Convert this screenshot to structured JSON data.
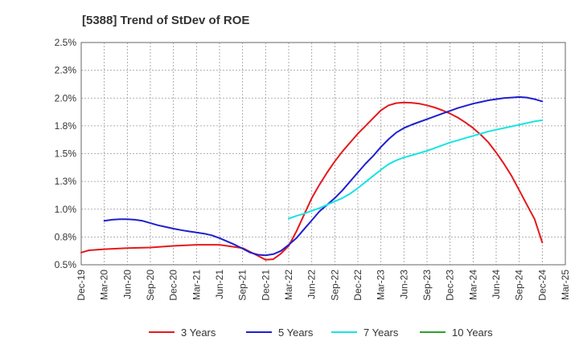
{
  "chart_data": {
    "type": "line",
    "title": "[5388]  Trend of StDev of ROE",
    "xlabel": "",
    "ylabel": "",
    "ylim": [
      0.5,
      2.5
    ],
    "y_ticks": [
      "0.5%",
      "0.8%",
      "1.0%",
      "1.3%",
      "1.5%",
      "1.8%",
      "2.0%",
      "2.3%",
      "2.5%"
    ],
    "y_tick_values": [
      0.5,
      0.75,
      1.0,
      1.25,
      1.5,
      1.75,
      2.0,
      2.25,
      2.5
    ],
    "x_ticks": [
      "Dec-19",
      "Mar-20",
      "Jun-20",
      "Sep-20",
      "Dec-20",
      "Mar-21",
      "Jun-21",
      "Sep-21",
      "Dec-21",
      "Mar-22",
      "Jun-22",
      "Sep-22",
      "Dec-22",
      "Mar-23",
      "Jun-23",
      "Sep-23",
      "Dec-23",
      "Mar-24",
      "Jun-24",
      "Sep-24",
      "Dec-24",
      "Mar-25"
    ],
    "grid": true,
    "legend_position": "bottom",
    "series": [
      {
        "name": "3 Years",
        "color": "#e31a1c",
        "points": [
          [
            "Dec-19",
            0.61
          ],
          [
            "Jan-20",
            0.63
          ],
          [
            "Mar-20",
            0.64
          ],
          [
            "Jun-20",
            0.65
          ],
          [
            "Sep-20",
            0.655
          ],
          [
            "Dec-20",
            0.67
          ],
          [
            "Mar-21",
            0.68
          ],
          [
            "Jun-21",
            0.68
          ],
          [
            "Sep-21",
            0.65
          ],
          [
            "Nov-21",
            0.58
          ],
          [
            "Dec-21",
            0.545
          ],
          [
            "Jan-22",
            0.55
          ],
          [
            "Feb-22",
            0.6
          ],
          [
            "Mar-22",
            0.67
          ],
          [
            "Apr-22",
            0.8
          ],
          [
            "May-22",
            0.95
          ],
          [
            "Jun-22",
            1.1
          ],
          [
            "Jul-22",
            1.22
          ],
          [
            "Aug-22",
            1.33
          ],
          [
            "Sep-22",
            1.43
          ],
          [
            "Oct-22",
            1.52
          ],
          [
            "Nov-22",
            1.6
          ],
          [
            "Dec-22",
            1.68
          ],
          [
            "Jan-23",
            1.75
          ],
          [
            "Feb-23",
            1.82
          ],
          [
            "Mar-23",
            1.89
          ],
          [
            "Apr-23",
            1.935
          ],
          [
            "May-23",
            1.955
          ],
          [
            "Jun-23",
            1.96
          ],
          [
            "Jul-23",
            1.958
          ],
          [
            "Aug-23",
            1.95
          ],
          [
            "Sep-23",
            1.935
          ],
          [
            "Oct-23",
            1.915
          ],
          [
            "Nov-23",
            1.89
          ],
          [
            "Dec-23",
            1.86
          ],
          [
            "Jan-24",
            1.825
          ],
          [
            "Feb-24",
            1.78
          ],
          [
            "Mar-24",
            1.73
          ],
          [
            "Apr-24",
            1.67
          ],
          [
            "May-24",
            1.6
          ],
          [
            "Jun-24",
            1.51
          ],
          [
            "Jul-24",
            1.41
          ],
          [
            "Aug-24",
            1.3
          ],
          [
            "Sep-24",
            1.17
          ],
          [
            "Oct-24",
            1.04
          ],
          [
            "Nov-24",
            0.91
          ],
          [
            "Dec-24",
            0.7
          ]
        ]
      },
      {
        "name": "5 Years",
        "color": "#1f1fcf",
        "points": [
          [
            "Mar-20",
            0.895
          ],
          [
            "Apr-20",
            0.905
          ],
          [
            "May-20",
            0.91
          ],
          [
            "Jun-20",
            0.91
          ],
          [
            "Jul-20",
            0.905
          ],
          [
            "Aug-20",
            0.895
          ],
          [
            "Sep-20",
            0.875
          ],
          [
            "Oct-20",
            0.855
          ],
          [
            "Nov-20",
            0.84
          ],
          [
            "Dec-20",
            0.825
          ],
          [
            "Jan-21",
            0.812
          ],
          [
            "Feb-21",
            0.8
          ],
          [
            "Mar-21",
            0.79
          ],
          [
            "Apr-21",
            0.78
          ],
          [
            "May-21",
            0.765
          ],
          [
            "Jun-21",
            0.74
          ],
          [
            "Jul-21",
            0.71
          ],
          [
            "Aug-21",
            0.68
          ],
          [
            "Sep-21",
            0.645
          ],
          [
            "Oct-21",
            0.61
          ],
          [
            "Nov-21",
            0.59
          ],
          [
            "Dec-21",
            0.585
          ],
          [
            "Jan-22",
            0.595
          ],
          [
            "Feb-22",
            0.625
          ],
          [
            "Mar-22",
            0.68
          ],
          [
            "Apr-22",
            0.74
          ],
          [
            "May-22",
            0.82
          ],
          [
            "Jun-22",
            0.9
          ],
          [
            "Jul-22",
            0.98
          ],
          [
            "Aug-22",
            1.04
          ],
          [
            "Sep-22",
            1.1
          ],
          [
            "Oct-22",
            1.17
          ],
          [
            "Nov-22",
            1.25
          ],
          [
            "Dec-22",
            1.33
          ],
          [
            "Jan-23",
            1.41
          ],
          [
            "Feb-23",
            1.48
          ],
          [
            "Mar-23",
            1.56
          ],
          [
            "Apr-23",
            1.63
          ],
          [
            "May-23",
            1.69
          ],
          [
            "Jun-23",
            1.73
          ],
          [
            "Jul-23",
            1.76
          ],
          [
            "Aug-23",
            1.785
          ],
          [
            "Sep-23",
            1.81
          ],
          [
            "Oct-23",
            1.835
          ],
          [
            "Nov-23",
            1.86
          ],
          [
            "Dec-23",
            1.885
          ],
          [
            "Jan-24",
            1.91
          ],
          [
            "Feb-24",
            1.93
          ],
          [
            "Mar-24",
            1.95
          ],
          [
            "Apr-24",
            1.965
          ],
          [
            "May-24",
            1.98
          ],
          [
            "Jun-24",
            1.99
          ],
          [
            "Jul-24",
            2.0
          ],
          [
            "Aug-24",
            2.005
          ],
          [
            "Sep-24",
            2.01
          ],
          [
            "Oct-24",
            2.005
          ],
          [
            "Nov-24",
            1.99
          ],
          [
            "Dec-24",
            1.97
          ]
        ]
      },
      {
        "name": "7 Years",
        "color": "#19e3e3",
        "points": [
          [
            "Mar-22",
            0.915
          ],
          [
            "Apr-22",
            0.94
          ],
          [
            "May-22",
            0.96
          ],
          [
            "Jun-22",
            0.985
          ],
          [
            "Jul-22",
            1.01
          ],
          [
            "Aug-22",
            1.04
          ],
          [
            "Sep-22",
            1.07
          ],
          [
            "Oct-22",
            1.1
          ],
          [
            "Nov-22",
            1.14
          ],
          [
            "Dec-22",
            1.19
          ],
          [
            "Jan-23",
            1.245
          ],
          [
            "Feb-23",
            1.3
          ],
          [
            "Mar-23",
            1.355
          ],
          [
            "Apr-23",
            1.405
          ],
          [
            "May-23",
            1.44
          ],
          [
            "Jun-23",
            1.465
          ],
          [
            "Jul-23",
            1.485
          ],
          [
            "Aug-23",
            1.505
          ],
          [
            "Sep-23",
            1.525
          ],
          [
            "Oct-23",
            1.55
          ],
          [
            "Nov-23",
            1.575
          ],
          [
            "Dec-23",
            1.6
          ],
          [
            "Jan-24",
            1.62
          ],
          [
            "Feb-24",
            1.64
          ],
          [
            "Mar-24",
            1.66
          ],
          [
            "Apr-24",
            1.68
          ],
          [
            "May-24",
            1.7
          ],
          [
            "Jun-24",
            1.715
          ],
          [
            "Jul-24",
            1.73
          ],
          [
            "Aug-24",
            1.745
          ],
          [
            "Sep-24",
            1.76
          ],
          [
            "Oct-24",
            1.775
          ],
          [
            "Nov-24",
            1.79
          ],
          [
            "Dec-24",
            1.8
          ]
        ]
      },
      {
        "name": "10 Years",
        "color": "#2ca02c",
        "points": []
      }
    ]
  }
}
